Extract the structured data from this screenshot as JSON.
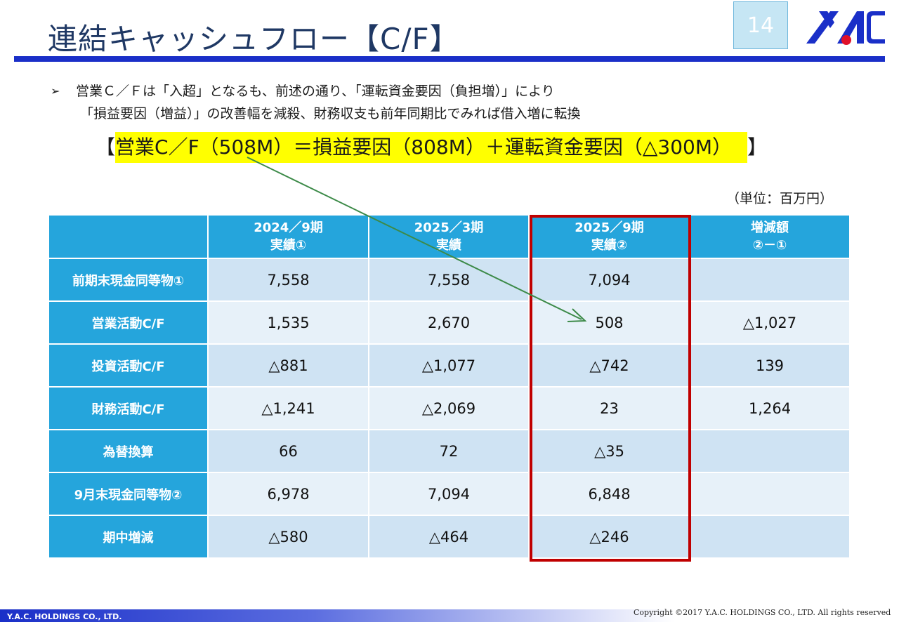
{
  "title": "連結キャッシュフロー【C/F】",
  "page_number": "14",
  "bullet": {
    "line1": "営業Ｃ／Ｆは「入超」となるも、前述の通り、「運転資金要因（負担増）」により",
    "line2": "「損益要因（増益）」の改善幅を減殺、財務収支も前年同期比でみれば借入増に転換"
  },
  "formula": {
    "open_bracket": "【",
    "text": "営業C／F（508M）＝損益要因（808M）＋運転資金要因（△300M）",
    "close_bracket": "】"
  },
  "unit_note": "（単位：百万円）",
  "table": {
    "headers": [
      {
        "line1": "",
        "line2": ""
      },
      {
        "line1": "2024／9期",
        "line2": "実績①"
      },
      {
        "line1": "2025／3期",
        "line2": "実績"
      },
      {
        "line1": "2025／9期",
        "line2": "実績②"
      },
      {
        "line1": "増減額",
        "line2": "②－①"
      }
    ],
    "rows": [
      {
        "label": "前期末現金同等物①",
        "v2024_9": "7,558",
        "v2025_3": "7,558",
        "v2025_9": "7,094",
        "diff": ""
      },
      {
        "label": "営業活動C/F",
        "v2024_9": "1,535",
        "v2025_3": "2,670",
        "v2025_9": "508",
        "diff": "△1,027"
      },
      {
        "label": "投資活動C/F",
        "v2024_9": "△881",
        "v2025_3": "△1,077",
        "v2025_9": "△742",
        "diff": "139"
      },
      {
        "label": "財務活動C/F",
        "v2024_9": "△1,241",
        "v2025_3": "△2,069",
        "v2025_9": "23",
        "diff": "1,264"
      },
      {
        "label": "為替換算",
        "v2024_9": "66",
        "v2025_3": "72",
        "v2025_9": "△35",
        "diff": ""
      },
      {
        "label": "9月末現金同等物②",
        "v2024_9": "6,978",
        "v2025_3": "7,094",
        "v2025_9": "6,848",
        "diff": ""
      },
      {
        "label": "期中増減",
        "v2024_9": "△580",
        "v2025_3": "△464",
        "v2025_9": "△246",
        "diff": ""
      }
    ]
  },
  "footer": {
    "company": "Y.A.C. HOLDINGS CO., LTD.",
    "copyright": "Copyright ©2017 Y.A.C. HOLDINGS CO., LTD.  All rights reserved"
  },
  "colors": {
    "accent_blue": "#1a2fc8",
    "header_cyan": "#25a5dc",
    "highlight": "#ffff00",
    "emphasis_red": "#c00000",
    "arrow_green": "#3c8a48"
  }
}
